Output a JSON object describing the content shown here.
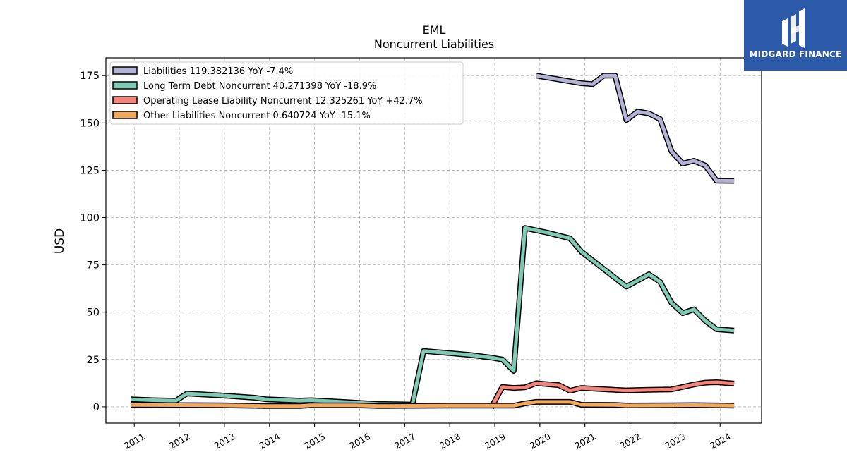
{
  "brand": {
    "name": "MIDGARD FINANCE",
    "background": "#2c5aa8"
  },
  "chart_data": {
    "type": "line",
    "title": "EML",
    "subtitle": "Noncurrent  Liabilities",
    "ylabel": "USD",
    "xlabel": "",
    "ylim": [
      -8.6,
      184.4
    ],
    "xlim": [
      2010.37,
      2024.92
    ],
    "yticks": [
      0,
      25,
      50,
      75,
      100,
      125,
      150,
      175
    ],
    "xticks": [
      "2011",
      "2012",
      "2013",
      "2014",
      "2015",
      "2016",
      "2017",
      "2018",
      "2019",
      "2020",
      "2021",
      "2022",
      "2023",
      "2024"
    ],
    "grid": true,
    "legend_position": "top-left",
    "series": [
      {
        "name": "Liabilities  119.382136 YoY -7.4%",
        "color": "#b4b3d6",
        "points": [
          [
            2019.92,
            175
          ],
          [
            2020.17,
            174
          ],
          [
            2020.42,
            173
          ],
          [
            2020.67,
            172
          ],
          [
            2020.92,
            171
          ],
          [
            2021.17,
            170.5
          ],
          [
            2021.42,
            175
          ],
          [
            2021.67,
            175
          ],
          [
            2021.92,
            151.5
          ],
          [
            2022.17,
            156
          ],
          [
            2022.42,
            155
          ],
          [
            2022.67,
            152
          ],
          [
            2022.92,
            135
          ],
          [
            2023.17,
            128.5
          ],
          [
            2023.42,
            130
          ],
          [
            2023.67,
            127.5
          ],
          [
            2023.92,
            119.5
          ],
          [
            2024.31,
            119.4
          ]
        ]
      },
      {
        "name": "Long Term Debt Noncurrent  40.271398 YoY -18.9%",
        "color": "#7fcab5",
        "points": [
          [
            2010.92,
            4
          ],
          [
            2011.42,
            3.5
          ],
          [
            2011.92,
            3.2
          ],
          [
            2012.17,
            7
          ],
          [
            2012.92,
            6
          ],
          [
            2013.67,
            4.8
          ],
          [
            2013.92,
            4
          ],
          [
            2014.67,
            3.3
          ],
          [
            2014.92,
            3.5
          ],
          [
            2015.92,
            2.2
          ],
          [
            2016.42,
            1.5
          ],
          [
            2016.92,
            1.3
          ],
          [
            2017.17,
            1.2
          ],
          [
            2017.42,
            29.5
          ],
          [
            2017.92,
            28.5
          ],
          [
            2018.42,
            27.5
          ],
          [
            2018.92,
            26
          ],
          [
            2019.17,
            25
          ],
          [
            2019.42,
            19
          ],
          [
            2019.67,
            94.5
          ],
          [
            2020.17,
            92
          ],
          [
            2020.67,
            89
          ],
          [
            2020.92,
            82
          ],
          [
            2021.92,
            63.5
          ],
          [
            2022.42,
            70
          ],
          [
            2022.67,
            66
          ],
          [
            2022.92,
            55
          ],
          [
            2023.17,
            49.5
          ],
          [
            2023.42,
            51.5
          ],
          [
            2023.67,
            45.5
          ],
          [
            2023.92,
            41
          ],
          [
            2024.31,
            40.3
          ]
        ]
      },
      {
        "name": "Operating Lease Liability Noncurrent  12.325261 YoY +42.7%",
        "color": "#f4837a",
        "points": [
          [
            2018.92,
            -0.5
          ],
          [
            2019.17,
            10.5
          ],
          [
            2019.42,
            10
          ],
          [
            2019.67,
            10.3
          ],
          [
            2019.92,
            12.5
          ],
          [
            2020.42,
            11.5
          ],
          [
            2020.67,
            8.5
          ],
          [
            2020.92,
            10
          ],
          [
            2021.42,
            9.3
          ],
          [
            2021.92,
            8.7
          ],
          [
            2022.42,
            9
          ],
          [
            2022.92,
            9.2
          ],
          [
            2023.17,
            10.5
          ],
          [
            2023.42,
            11.8
          ],
          [
            2023.67,
            12.8
          ],
          [
            2023.92,
            13
          ],
          [
            2024.31,
            12.3
          ]
        ]
      },
      {
        "name": "Other Liabilities Noncurrent  0.640724 YoY -15.1%",
        "color": "#f4a85c",
        "points": [
          [
            2010.92,
            1
          ],
          [
            2012.92,
            0.8
          ],
          [
            2013.92,
            0.4
          ],
          [
            2014.67,
            0.4
          ],
          [
            2014.92,
            0.8
          ],
          [
            2015.92,
            0.8
          ],
          [
            2016.42,
            0.4
          ],
          [
            2017.92,
            0.6
          ],
          [
            2018.92,
            0.6
          ],
          [
            2019.42,
            0.6
          ],
          [
            2019.67,
            1.8
          ],
          [
            2019.92,
            2.6
          ],
          [
            2020.67,
            2.6
          ],
          [
            2020.92,
            1.1
          ],
          [
            2021.67,
            1
          ],
          [
            2021.92,
            0.7
          ],
          [
            2022.92,
            0.8
          ],
          [
            2023.42,
            0.9
          ],
          [
            2023.92,
            0.75
          ],
          [
            2024.31,
            0.64
          ]
        ]
      }
    ]
  }
}
